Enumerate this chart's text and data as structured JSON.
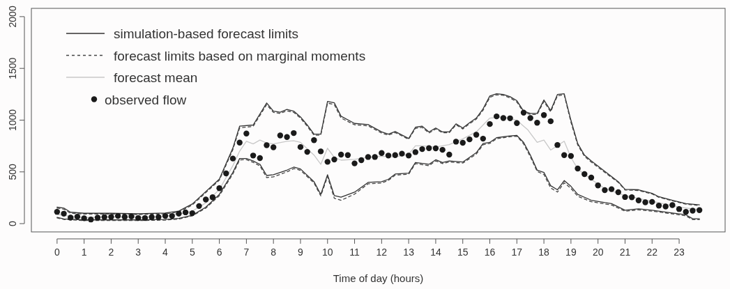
{
  "chart_data": {
    "type": "line",
    "xlabel": "Time of day (hours)",
    "xlim": [
      -0.95,
      24.7
    ],
    "ylim": [
      -80,
      2080
    ],
    "xticks": [
      0,
      1,
      2,
      3,
      4,
      5,
      6,
      7,
      8,
      9,
      10,
      11,
      12,
      13,
      14,
      15,
      16,
      17,
      18,
      19,
      20,
      21,
      22,
      23
    ],
    "yticks": [
      0,
      500,
      1000,
      1500,
      2000
    ],
    "grid": false,
    "legend": "top left",
    "series": [
      {
        "name": "simulation-based forecast limits",
        "line_style": "solid",
        "color": "#333333",
        "x": [
          0,
          0.25,
          0.5,
          1,
          2,
          3,
          4,
          4.5,
          5,
          6,
          6.5,
          6.75,
          7.25,
          7.75,
          8,
          8.25,
          8.5,
          8.75,
          9,
          9.25,
          9.5,
          9.75,
          10,
          10.25,
          10.5,
          11,
          11.5,
          12,
          12.25,
          12.5,
          13,
          13.25,
          13.5,
          13.75,
          14,
          14.25,
          14.5,
          14.75,
          15,
          15.25,
          15.5,
          15.75,
          16,
          16.25,
          16.5,
          16.75,
          17,
          17.25,
          17.5,
          17.75,
          18,
          18.25,
          18.5,
          18.75,
          19,
          19.25,
          19.5,
          19.75,
          20.25,
          20.75,
          21,
          21.5,
          22,
          22.25,
          22.75,
          23.25,
          23.75
        ],
        "values": [
          159,
          150,
          110,
          100,
          100,
          95,
          103,
          121,
          190,
          430,
          730,
          942,
          953,
          1166,
          1087,
          1076,
          1103,
          1087,
          1031,
          953,
          864,
          864,
          1181,
          1168,
          1038,
          968,
          957,
          886,
          864,
          890,
          823,
          931,
          942,
          886,
          924,
          886,
          886,
          964,
          924,
          975,
          1020,
          1109,
          1233,
          1255,
          1248,
          1226,
          1188,
          1087,
          1065,
          1065,
          1195,
          1092,
          1248,
          1255,
          998,
          774,
          662,
          606,
          505,
          405,
          331,
          327,
          293,
          260,
          226,
          193,
          181
        ]
      },
      {
        "line_style": "solid",
        "color": "#333333",
        "x": [
          0,
          0.25,
          1,
          2,
          3,
          4,
          4.5,
          5,
          5.5,
          6,
          6.5,
          6.75,
          7,
          7.25,
          7.5,
          7.75,
          8,
          8.5,
          8.75,
          9,
          9.5,
          9.75,
          10,
          10.25,
          10.5,
          11,
          11.5,
          12,
          12.25,
          12.5,
          13,
          13.25,
          13.75,
          14,
          14.25,
          14.5,
          15,
          15.5,
          15.75,
          16,
          16.25,
          16.75,
          17,
          17.25,
          17.5,
          17.75,
          18,
          18.25,
          18.5,
          18.75,
          19,
          19.25,
          19.75,
          20.25,
          20.5,
          21,
          21.5,
          22,
          22.75,
          23.25,
          23.5,
          23.75
        ],
        "values": [
          60,
          45,
          36,
          36,
          36,
          40,
          50,
          81,
          159,
          282,
          495,
          629,
          629,
          606,
          573,
          465,
          472,
          517,
          546,
          528,
          405,
          282,
          472,
          271,
          255,
          304,
          398,
          405,
          428,
          479,
          488,
          591,
          573,
          617,
          591,
          606,
          595,
          685,
          774,
          785,
          830,
          848,
          852,
          785,
          662,
          517,
          495,
          367,
          327,
          416,
          360,
          282,
          226,
          203,
          193,
          130,
          143,
          130,
          103,
          85,
          47,
          47
        ]
      },
      {
        "name": "forecast limits based on marginal moments",
        "line_style": "dashed",
        "color": "#444444",
        "x": [
          0,
          0.25,
          0.5,
          1,
          2,
          3,
          4,
          4.5,
          5,
          6,
          6.5,
          6.75,
          7.25,
          7.75,
          8,
          8.25,
          8.5,
          8.75,
          9,
          9.25,
          9.5,
          9.75,
          10,
          10.25,
          10.5,
          11,
          11.5,
          12,
          12.25,
          12.5,
          13,
          13.25,
          13.5,
          13.75,
          14,
          14.25,
          14.5,
          14.75,
          15,
          15.25,
          15.5,
          15.75,
          16,
          16.25,
          16.5,
          16.75,
          17,
          17.25,
          17.5,
          17.75,
          18,
          18.25,
          18.5,
          18.75,
          19,
          19.25,
          19.5,
          19.75,
          20.25,
          20.75,
          21,
          21.5,
          22,
          22.25,
          22.75,
          23.25,
          23.75
        ],
        "values": [
          150,
          140,
          100,
          92,
          92,
          88,
          95,
          112,
          180,
          420,
          715,
          925,
          940,
          1150,
          1075,
          1065,
          1090,
          1075,
          1020,
          940,
          855,
          855,
          1165,
          1150,
          1020,
          955,
          945,
          875,
          855,
          880,
          815,
          920,
          930,
          875,
          915,
          878,
          878,
          955,
          915,
          965,
          1010,
          1095,
          1220,
          1245,
          1240,
          1215,
          1175,
          1075,
          1055,
          1055,
          1180,
          1080,
          1235,
          1245,
          980,
          760,
          650,
          595,
          495,
          398,
          325,
          320,
          287,
          254,
          220,
          188,
          175
        ]
      },
      {
        "line_style": "dashed",
        "color": "#444444",
        "x": [
          0,
          0.25,
          1,
          2,
          3,
          4,
          4.5,
          5,
          5.5,
          6,
          6.5,
          6.75,
          7,
          7.25,
          7.5,
          7.75,
          8,
          8.5,
          8.75,
          9,
          9.5,
          9.75,
          10,
          10.25,
          10.5,
          11,
          11.5,
          12,
          12.25,
          12.5,
          13,
          13.25,
          13.75,
          14,
          14.25,
          14.5,
          15,
          15.5,
          15.75,
          16,
          16.25,
          16.75,
          17,
          17.25,
          17.5,
          17.75,
          18,
          18.25,
          18.5,
          18.75,
          19,
          19.25,
          19.75,
          20.25,
          20.5,
          21,
          21.5,
          22,
          22.75,
          23.25,
          23.5,
          23.75
        ],
        "values": [
          55,
          40,
          30,
          30,
          30,
          34,
          44,
          75,
          150,
          270,
          480,
          615,
          618,
          592,
          558,
          445,
          452,
          500,
          532,
          515,
          392,
          268,
          455,
          245,
          225,
          285,
          385,
          392,
          418,
          468,
          478,
          580,
          560,
          606,
          580,
          595,
          585,
          672,
          762,
          775,
          820,
          840,
          845,
          770,
          645,
          505,
          475,
          345,
          305,
          395,
          340,
          265,
          212,
          190,
          180,
          120,
          133,
          120,
          95,
          75,
          38,
          38
        ]
      },
      {
        "name": "forecast mean",
        "line_style": "solid",
        "color": "#c8c8c8",
        "x": [
          0,
          0.5,
          1,
          2,
          3,
          4,
          4.5,
          5,
          5.5,
          6,
          6.5,
          6.75,
          7,
          7.25,
          7.5,
          7.75,
          8,
          8.5,
          8.75,
          9,
          9.5,
          9.75,
          10,
          10.25,
          10.5,
          11,
          11.5,
          12,
          12.5,
          13,
          13.25,
          13.5,
          14,
          14.5,
          15,
          15.5,
          16,
          16.5,
          17,
          17.4,
          17.75,
          18,
          18.25,
          18.75,
          19,
          19.25,
          19.75,
          20.25,
          21,
          22,
          23,
          23.75
        ],
        "values": [
          90,
          70,
          60,
          65,
          60,
          70,
          90,
          120,
          200,
          330,
          560,
          700,
          796,
          770,
          807,
          779,
          770,
          796,
          800,
          785,
          662,
          573,
          729,
          640,
          613,
          620,
          640,
          651,
          644,
          670,
          752,
          752,
          740,
          763,
          819,
          886,
          1020,
          1031,
          998,
          908,
          785,
          807,
          711,
          796,
          640,
          528,
          428,
          338,
          271,
          215,
          159,
          134
        ]
      },
      {
        "name": "observed flow",
        "type": "scatter",
        "marker": "circle",
        "color": "#1a1a1a",
        "x": [
          0,
          0.25,
          0.5,
          0.75,
          1,
          1.25,
          1.5,
          1.75,
          2,
          2.25,
          2.5,
          2.75,
          3,
          3.25,
          3.5,
          3.75,
          4,
          4.25,
          4.5,
          4.75,
          5,
          5.25,
          5.5,
          5.75,
          6,
          6.25,
          6.5,
          6.75,
          7,
          7.25,
          7.5,
          7.75,
          8,
          8.25,
          8.5,
          8.75,
          9,
          9.25,
          9.5,
          9.75,
          10,
          10.25,
          10.5,
          10.75,
          11,
          11.25,
          11.5,
          11.75,
          12,
          12.25,
          12.5,
          12.75,
          13,
          13.25,
          13.5,
          13.75,
          14,
          14.25,
          14.5,
          14.75,
          15,
          15.25,
          15.5,
          15.75,
          16,
          16.25,
          16.5,
          16.75,
          17,
          17.25,
          17.5,
          17.75,
          18,
          18.25,
          18.5,
          18.75,
          19,
          19.25,
          19.5,
          19.75,
          20,
          20.25,
          20.5,
          20.75,
          21,
          21.25,
          21.5,
          21.75,
          22,
          22.25,
          22.5,
          22.75,
          23,
          23.25,
          23.5,
          23.75
        ],
        "values": [
          114,
          96,
          58,
          67,
          52,
          40,
          58,
          63,
          65,
          74,
          65,
          69,
          54,
          54,
          63,
          63,
          74,
          74,
          96,
          109,
          101,
          170,
          233,
          255,
          342,
          485,
          629,
          783,
          870,
          658,
          633,
          758,
          738,
          852,
          837,
          875,
          740,
          693,
          807,
          698,
          597,
          620,
          667,
          662,
          582,
          613,
          644,
          644,
          682,
          658,
          662,
          676,
          658,
          691,
          720,
          729,
          727,
          713,
          667,
          792,
          781,
          814,
          859,
          821,
          962,
          1036,
          1020,
          1018,
          971,
          1072,
          1020,
          975,
          1049,
          989,
          760,
          662,
          653,
          532,
          479,
          445,
          369,
          324,
          333,
          304,
          257,
          255,
          224,
          206,
          210,
          174,
          166,
          179,
          141,
          114,
          125,
          130
        ]
      }
    ]
  }
}
